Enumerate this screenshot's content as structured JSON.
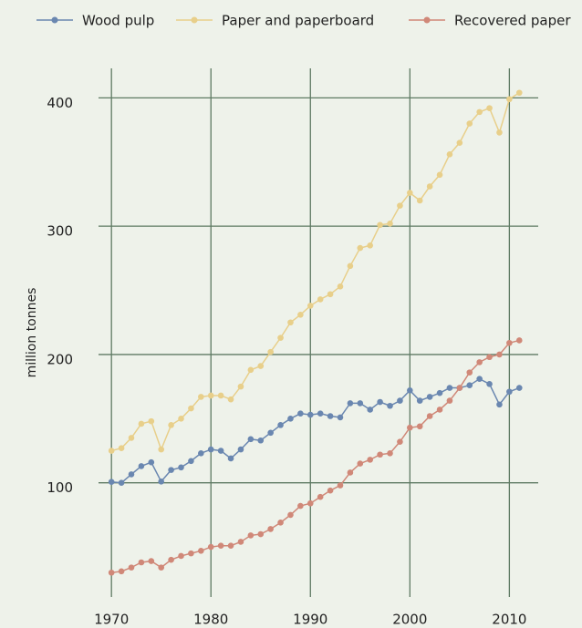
{
  "chart_data": {
    "type": "line",
    "y_label": "million tonnes",
    "x": [
      1970,
      1971,
      1972,
      1973,
      1974,
      1975,
      1976,
      1977,
      1978,
      1979,
      1980,
      1981,
      1982,
      1983,
      1984,
      1985,
      1986,
      1987,
      1988,
      1989,
      1990,
      1991,
      1992,
      1993,
      1994,
      1995,
      1996,
      1997,
      1998,
      1999,
      2000,
      2001,
      2002,
      2003,
      2004,
      2005,
      2006,
      2007,
      2008,
      2009,
      2010,
      2011
    ],
    "series": [
      {
        "name": "Wood pulp",
        "color": "#6a87b0",
        "values": [
          100.7,
          100,
          106.6,
          113,
          116,
          101,
          110,
          112,
          117,
          123,
          126,
          125,
          119,
          126,
          134,
          133,
          139,
          145,
          150,
          154,
          153,
          154,
          152,
          151,
          162,
          162,
          157,
          163,
          160,
          164,
          172,
          164,
          167,
          170,
          174,
          174,
          176,
          181,
          177,
          161,
          171,
          174
        ]
      },
      {
        "name": "Paper and paperboard",
        "color": "#e8cf8a",
        "values": [
          125,
          127,
          135,
          146,
          148,
          126,
          145,
          150,
          158,
          167,
          168,
          168,
          165,
          175,
          188,
          191,
          202,
          213,
          225,
          231,
          238,
          243,
          247,
          253,
          269,
          283,
          285,
          301,
          302,
          316,
          326,
          320,
          331,
          340,
          356,
          365,
          380,
          389,
          392,
          373,
          399,
          404
        ]
      },
      {
        "name": "Recovered paper",
        "color": "#d08878",
        "values": [
          30,
          31,
          34,
          38,
          39,
          34,
          40,
          43,
          45,
          47,
          50,
          51,
          51,
          54,
          59,
          60,
          64,
          69,
          75,
          82,
          84,
          89,
          94,
          98,
          108,
          115,
          118,
          122,
          123,
          132,
          143,
          144,
          152,
          157,
          164,
          174,
          186,
          194,
          198,
          200,
          209,
          211
        ]
      }
    ],
    "xlim": [
      1968.7,
      2012.9
    ],
    "xticks": [
      1970,
      1980,
      1990,
      2000,
      2010
    ],
    "ylim": [
      11,
      423
    ],
    "yticks": [
      100,
      200,
      300,
      400
    ],
    "grid": true,
    "legend": "top"
  }
}
